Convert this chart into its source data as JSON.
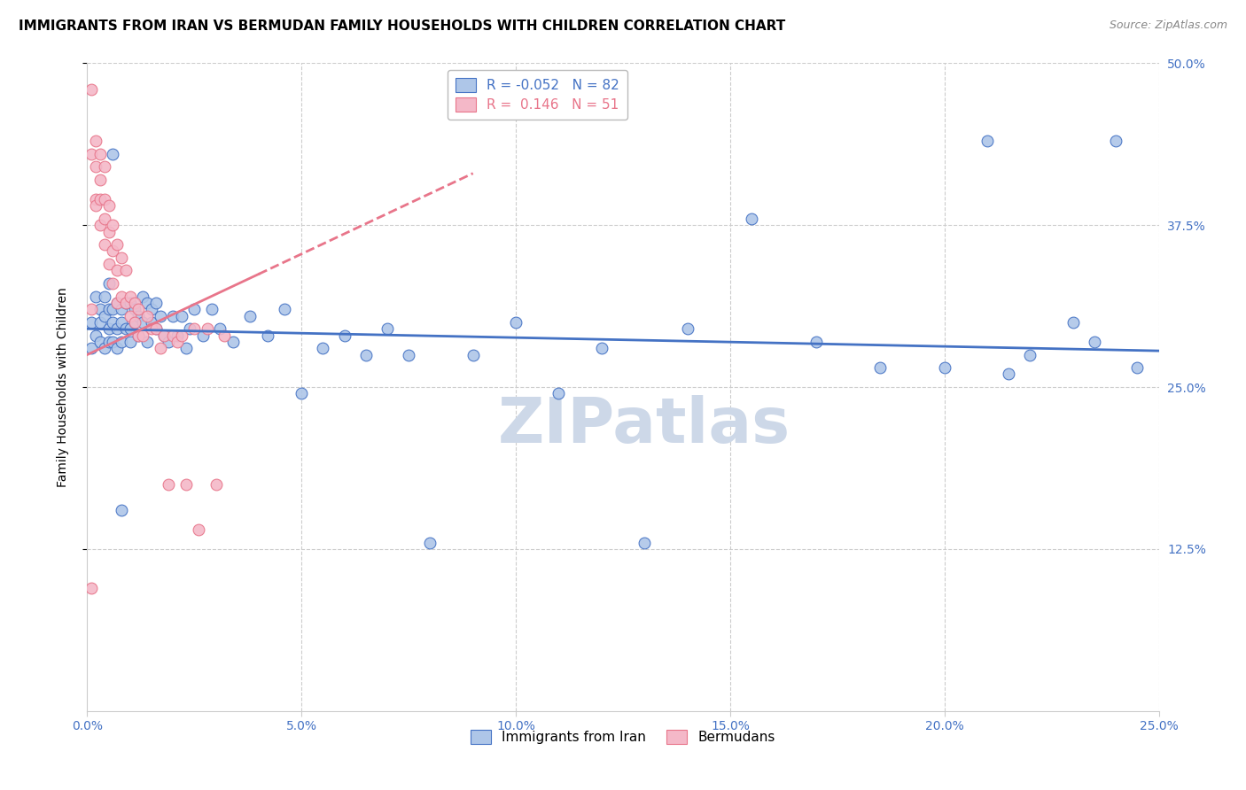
{
  "title": "IMMIGRANTS FROM IRAN VS BERMUDAN FAMILY HOUSEHOLDS WITH CHILDREN CORRELATION CHART",
  "source": "Source: ZipAtlas.com",
  "ylabel": "Family Households with Children",
  "xmin": 0.0,
  "xmax": 0.25,
  "ymin": 0.0,
  "ymax": 0.5,
  "legend_labels": [
    "Immigrants from Iran",
    "Bermudans"
  ],
  "legend_r_blue": "R = -0.052",
  "legend_n_blue": "N = 82",
  "legend_r_pink": "R =  0.146",
  "legend_n_pink": "N = 51",
  "blue_face_color": "#aec6e8",
  "pink_face_color": "#f4b8c8",
  "blue_edge_color": "#4472c4",
  "pink_edge_color": "#e8758a",
  "blue_line_color": "#4472c4",
  "pink_line_color": "#e8758a",
  "grid_color": "#cccccc",
  "background_color": "#ffffff",
  "title_fontsize": 11,
  "axis_label_fontsize": 10,
  "tick_fontsize": 10,
  "source_fontsize": 9,
  "watermark_text": "ZIPatlas",
  "watermark_color": "#cdd8e8",
  "watermark_fontsize": 52,
  "blue_trend_x0": 0.0,
  "blue_trend_x1": 0.25,
  "blue_trend_y0": 0.295,
  "blue_trend_y1": 0.278,
  "pink_trend_x0": 0.0,
  "pink_trend_x1": 0.09,
  "pink_trend_solid_end": 0.04,
  "pink_trend_y0": 0.275,
  "pink_trend_y1": 0.415,
  "scatter_blue_x": [
    0.001,
    0.001,
    0.002,
    0.002,
    0.003,
    0.003,
    0.003,
    0.004,
    0.004,
    0.004,
    0.005,
    0.005,
    0.005,
    0.005,
    0.006,
    0.006,
    0.006,
    0.007,
    0.007,
    0.007,
    0.008,
    0.008,
    0.008,
    0.009,
    0.009,
    0.01,
    0.01,
    0.01,
    0.011,
    0.011,
    0.012,
    0.012,
    0.013,
    0.013,
    0.014,
    0.014,
    0.015,
    0.015,
    0.016,
    0.016,
    0.017,
    0.018,
    0.019,
    0.02,
    0.021,
    0.022,
    0.023,
    0.024,
    0.025,
    0.027,
    0.029,
    0.031,
    0.034,
    0.038,
    0.042,
    0.046,
    0.05,
    0.055,
    0.06,
    0.065,
    0.07,
    0.075,
    0.08,
    0.09,
    0.1,
    0.11,
    0.12,
    0.13,
    0.14,
    0.155,
    0.17,
    0.185,
    0.2,
    0.21,
    0.215,
    0.22,
    0.23,
    0.235,
    0.24,
    0.245,
    0.006,
    0.008
  ],
  "scatter_blue_y": [
    0.3,
    0.28,
    0.32,
    0.29,
    0.3,
    0.285,
    0.31,
    0.305,
    0.28,
    0.32,
    0.295,
    0.31,
    0.285,
    0.33,
    0.3,
    0.285,
    0.31,
    0.295,
    0.315,
    0.28,
    0.3,
    0.285,
    0.31,
    0.295,
    0.315,
    0.295,
    0.315,
    0.285,
    0.3,
    0.31,
    0.305,
    0.29,
    0.3,
    0.32,
    0.315,
    0.285,
    0.3,
    0.31,
    0.295,
    0.315,
    0.305,
    0.29,
    0.285,
    0.305,
    0.29,
    0.305,
    0.28,
    0.295,
    0.31,
    0.29,
    0.31,
    0.295,
    0.285,
    0.305,
    0.29,
    0.31,
    0.245,
    0.28,
    0.29,
    0.275,
    0.295,
    0.275,
    0.13,
    0.275,
    0.3,
    0.245,
    0.28,
    0.13,
    0.295,
    0.38,
    0.285,
    0.265,
    0.265,
    0.44,
    0.26,
    0.275,
    0.3,
    0.285,
    0.44,
    0.265,
    0.43,
    0.155
  ],
  "scatter_pink_x": [
    0.001,
    0.001,
    0.001,
    0.002,
    0.002,
    0.002,
    0.002,
    0.003,
    0.003,
    0.003,
    0.003,
    0.004,
    0.004,
    0.004,
    0.004,
    0.005,
    0.005,
    0.005,
    0.006,
    0.006,
    0.006,
    0.007,
    0.007,
    0.007,
    0.008,
    0.008,
    0.009,
    0.009,
    0.01,
    0.01,
    0.011,
    0.011,
    0.012,
    0.012,
    0.013,
    0.014,
    0.015,
    0.016,
    0.017,
    0.018,
    0.019,
    0.02,
    0.021,
    0.022,
    0.023,
    0.025,
    0.026,
    0.028,
    0.03,
    0.032,
    0.001
  ],
  "scatter_pink_y": [
    0.48,
    0.43,
    0.31,
    0.44,
    0.42,
    0.395,
    0.39,
    0.43,
    0.41,
    0.395,
    0.375,
    0.42,
    0.395,
    0.38,
    0.36,
    0.39,
    0.37,
    0.345,
    0.375,
    0.355,
    0.33,
    0.36,
    0.34,
    0.315,
    0.35,
    0.32,
    0.34,
    0.315,
    0.32,
    0.305,
    0.315,
    0.3,
    0.31,
    0.29,
    0.29,
    0.305,
    0.295,
    0.295,
    0.28,
    0.29,
    0.175,
    0.29,
    0.285,
    0.29,
    0.175,
    0.295,
    0.14,
    0.295,
    0.175,
    0.29,
    0.095
  ]
}
